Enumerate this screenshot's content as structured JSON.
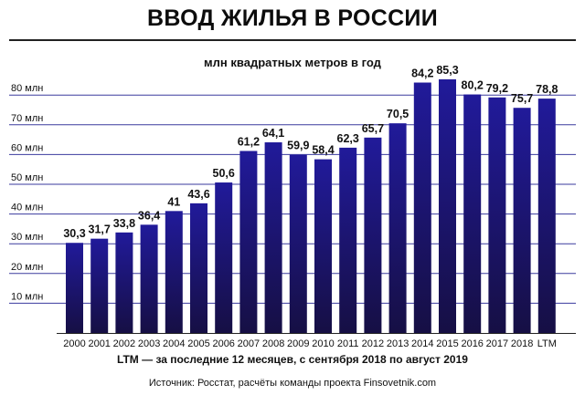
{
  "header": {
    "title": "ВВОД ЖИЛЬЯ В РОССИИ"
  },
  "footer": {
    "note": "LTM — за последние 12 месяцев, с сентября 2018 по август 2019",
    "source": "Источник: Росстат, расчёты команды проекта Finsovetnik.com"
  },
  "colors": {
    "bar_top": "#211a9a",
    "bar_bottom": "#160f44",
    "grid": "#3a3a9e"
  },
  "chart_data": {
    "type": "bar",
    "subtitle": "млн квадратных метров в год",
    "categories": [
      "2000",
      "2001",
      "2002",
      "2003",
      "2004",
      "2005",
      "2006",
      "2007",
      "2008",
      "2009",
      "2010",
      "2011",
      "2012",
      "2013",
      "2014",
      "2015",
      "2016",
      "2017",
      "2018",
      "LTM"
    ],
    "values": [
      30.3,
      31.7,
      33.8,
      36.4,
      41,
      43.6,
      50.6,
      61.2,
      64.1,
      59.9,
      58.4,
      62.3,
      65.7,
      70.5,
      84.2,
      85.3,
      80.2,
      79.2,
      75.7,
      78.8
    ],
    "value_labels": [
      "30,3",
      "31,7",
      "33,8",
      "36,4",
      "41",
      "43,6",
      "50,6",
      "61,2",
      "64,1",
      "59,9",
      "58,4",
      "62,3",
      "65,7",
      "70,5",
      "84,2",
      "85,3",
      "80,2",
      "79,2",
      "75,7",
      "78,8"
    ],
    "yticks": [
      10,
      20,
      30,
      40,
      50,
      60,
      70,
      80
    ],
    "ytick_labels": [
      "10 млн",
      "20 млн",
      "30 млн",
      "40 млн",
      "50 млн",
      "60 млн",
      "70 млн",
      "80 млн"
    ],
    "ylim": [
      0,
      90
    ],
    "grid": true,
    "legend": false
  }
}
